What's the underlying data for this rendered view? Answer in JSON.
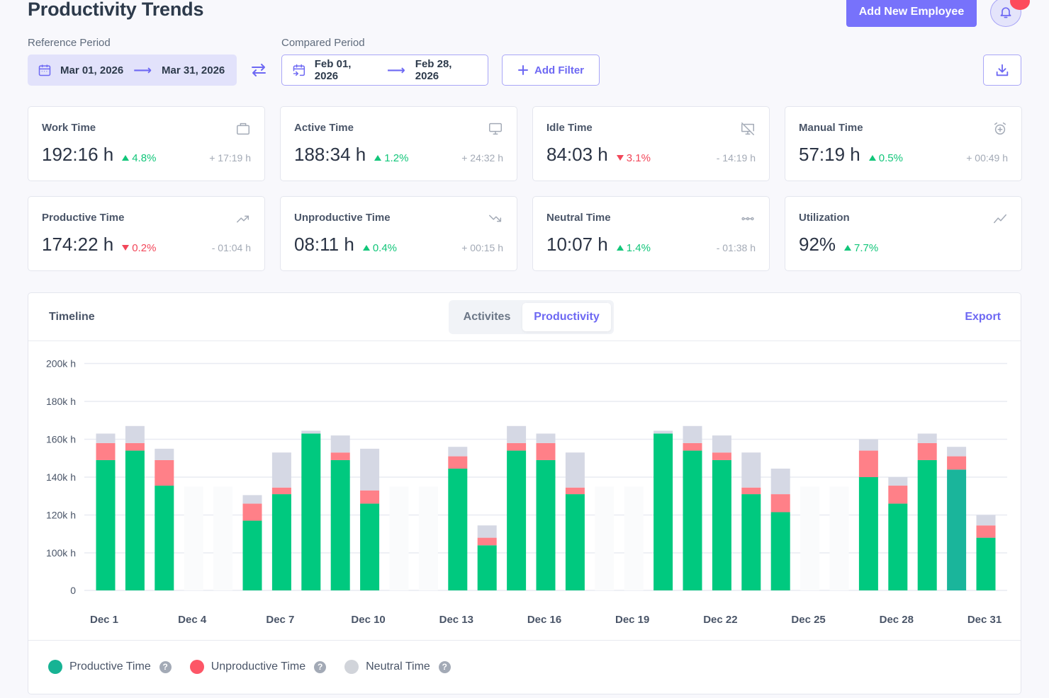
{
  "header": {
    "title": "Productivity Trends",
    "add_employee_label": "Add New Employee",
    "notification_icon": "bell-icon"
  },
  "filters": {
    "reference_label": "Reference Period",
    "reference_start": "Mar 01, 2026",
    "reference_end": "Mar 31, 2026",
    "compared_label": "Compared Period",
    "compared_start": "Feb 01, 2026",
    "compared_end": "Feb 28, 2026",
    "add_filter_label": "Add Filter",
    "arrow": "⟶"
  },
  "cards": [
    {
      "title": "Work Time",
      "icon": "briefcase-icon",
      "value": "192:16 h",
      "change": "4.8%",
      "direction": "up",
      "diff": "+ 17:19 h"
    },
    {
      "title": "Active Time",
      "icon": "monitor-icon",
      "value": "188:34 h",
      "change": "1.2%",
      "direction": "up",
      "diff": "+ 24:32 h"
    },
    {
      "title": "Idle Time",
      "icon": "monitor-off-icon",
      "value": "84:03 h",
      "change": "3.1%",
      "direction": "down",
      "diff": "- 14:19 h"
    },
    {
      "title": "Manual Time",
      "icon": "alarm-plus-icon",
      "value": "57:19 h",
      "change": "0.5%",
      "direction": "up",
      "diff": "+ 00:49 h"
    },
    {
      "title": "Productive Time",
      "icon": "trending-up-icon",
      "value": "174:22 h",
      "change": "0.2%",
      "direction": "down",
      "diff": "- 01:04 h"
    },
    {
      "title": "Unproductive Time",
      "icon": "trending-down-icon",
      "value": "08:11 h",
      "change": "0.4%",
      "direction": "up",
      "diff": "+ 00:15 h"
    },
    {
      "title": "Neutral Time",
      "icon": "dots-line-icon",
      "value": "10:07 h",
      "change": "1.4%",
      "direction": "up",
      "diff": "- 01:38 h"
    },
    {
      "title": "Utilization",
      "icon": "line-chart-icon",
      "value": "92%",
      "change": "7.7%",
      "direction": "up",
      "diff": ""
    }
  ],
  "timeline": {
    "title": "Timeline",
    "tabs": [
      {
        "label": "Activites",
        "active": false
      },
      {
        "label": "Productivity",
        "active": true
      }
    ],
    "export_label": "Export"
  },
  "colors": {
    "accent": "#7772fb",
    "productive": "#00c97f",
    "productive_hover": "#1ab59b",
    "unproductive": "#ff8088",
    "neutral": "#d5d8e4",
    "legend_productive": "#17b394",
    "legend_unproductive": "#fd5667",
    "legend_neutral": "#d1d4da"
  },
  "legend": [
    {
      "label": "Productive Time",
      "key": "productive"
    },
    {
      "label": "Unproductive Time",
      "key": "unproductive"
    },
    {
      "label": "Neutral Time",
      "key": "neutral"
    }
  ],
  "chart_data": {
    "type": "bar",
    "stacked": true,
    "title": "Timeline",
    "xlabel": "",
    "ylabel": "",
    "y_ticks": [
      "0",
      "100k h",
      "120k h",
      "140k h",
      "160k h",
      "180k h",
      "200k h"
    ],
    "y_tick_values": [
      0,
      100,
      120,
      140,
      160,
      180,
      200
    ],
    "y_unit": "k h",
    "y_axis_note": "broken axis: 0 then 100k–200k",
    "grid": true,
    "legend_position": "bottom-left",
    "x_tick_labels": [
      "Dec 1",
      "Dec 4",
      "Dec 7",
      "Dec 10",
      "Dec 13",
      "Dec 16",
      "Dec 19",
      "Dec 22",
      "Dec 25",
      "Dec 28",
      "Dec 31"
    ],
    "categories": [
      "Dec 1",
      "Dec 2",
      "Dec 3",
      "Dec 4",
      "Dec 5",
      "Dec 6",
      "Dec 7",
      "Dec 8",
      "Dec 9",
      "Dec 10",
      "Dec 11",
      "Dec 12",
      "Dec 13",
      "Dec 14",
      "Dec 15",
      "Dec 16",
      "Dec 17",
      "Dec 18",
      "Dec 19",
      "Dec 20",
      "Dec 21",
      "Dec 22",
      "Dec 23",
      "Dec 24",
      "Dec 25",
      "Dec 26",
      "Dec 27",
      "Dec 28",
      "Dec 29",
      "Dec 30",
      "Dec 31"
    ],
    "highlighted_category": "Dec 30",
    "series": [
      {
        "name": "Productive Time",
        "values": [
          149,
          154,
          135.5,
          0,
          0,
          117,
          131,
          163,
          149,
          126,
          0,
          0,
          144.5,
          104,
          154,
          149,
          131,
          0,
          0,
          163,
          154,
          149,
          131,
          121.5,
          0,
          0,
          140,
          126,
          149,
          144,
          108
        ]
      },
      {
        "name": "Unproductive Time",
        "values": [
          9,
          4,
          13.5,
          0,
          0,
          9,
          3.5,
          0,
          4,
          7,
          0,
          0,
          6.5,
          4,
          4,
          9,
          3.5,
          0,
          0,
          0,
          4,
          4,
          3.5,
          9.5,
          0,
          0,
          14,
          9.5,
          9,
          7,
          6.5
        ]
      },
      {
        "name": "Neutral Time",
        "values": [
          5,
          9,
          6,
          0,
          0,
          4.5,
          18.5,
          1.5,
          9,
          22,
          0,
          0,
          5,
          6.5,
          9,
          5,
          18.5,
          0,
          0,
          1.5,
          9,
          9,
          18.5,
          13.5,
          0,
          0,
          6,
          4.5,
          5,
          5,
          5.5
        ]
      }
    ]
  }
}
